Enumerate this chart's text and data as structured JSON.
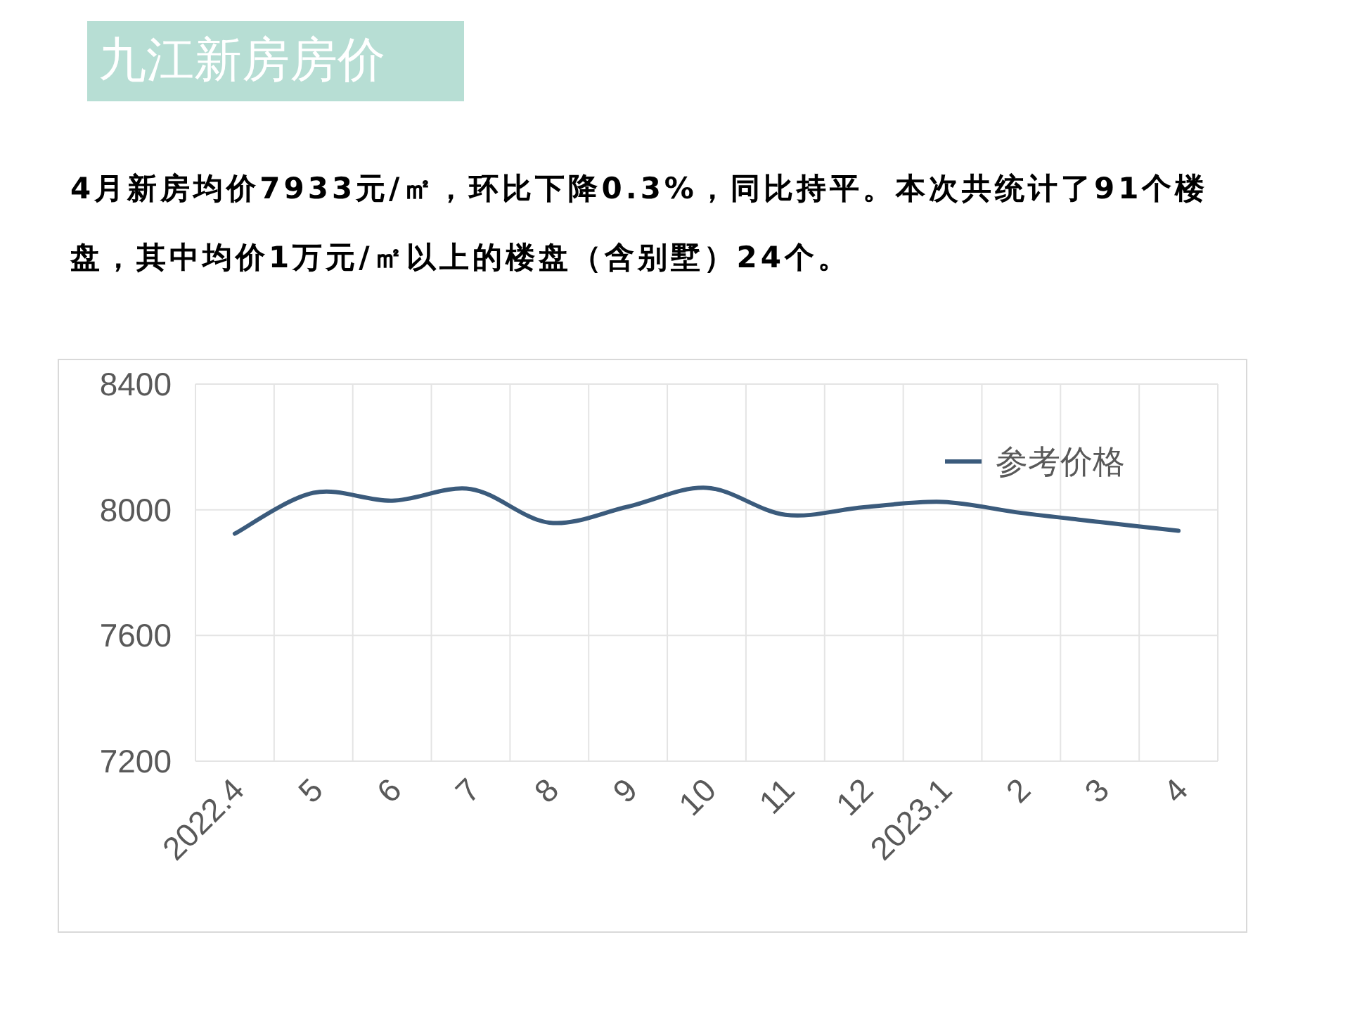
{
  "chart_data": {
    "type": "line",
    "title": "九江新房房价",
    "subtitle": "4月新房均价7933元/㎡，环比下降0.3%，同比持平。本次共统计了91个楼盘，其中均价1万元/㎡以上的楼盘（含别墅）24个。",
    "categories": [
      "2022.4",
      "5",
      "6",
      "7",
      "8",
      "9",
      "10",
      "11",
      "12",
      "2023.1",
      "2",
      "3",
      "4"
    ],
    "series": [
      {
        "name": "参考价格",
        "color": "#3b5b7c",
        "values": [
          7924,
          8054,
          8029,
          8066,
          7959,
          8010,
          8070,
          7984,
          8008,
          8025,
          7990,
          7961,
          7933
        ]
      }
    ],
    "ylim": [
      7200,
      8400
    ],
    "yticks": [
      7200,
      7600,
      8000,
      8400
    ],
    "grid": true,
    "legend": "top right"
  }
}
